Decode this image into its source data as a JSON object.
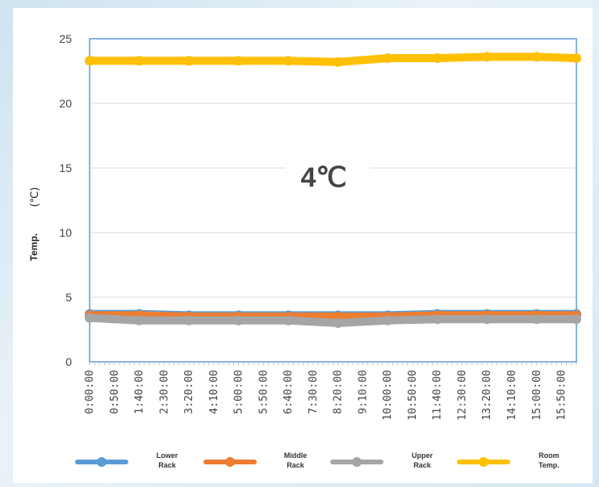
{
  "chart_data": {
    "type": "line",
    "title": "",
    "annotation": "4℃",
    "ylabel": "Temp.",
    "ylabel_unit": "(℃)",
    "xlabel": "",
    "ylim": [
      0,
      25
    ],
    "yticks": [
      0,
      5,
      10,
      15,
      20,
      25
    ],
    "grid": true,
    "legend_position": "bottom",
    "x_tick_labels": [
      "0:00:00",
      "0:50:00",
      "1:40:00",
      "2:30:00",
      "3:20:00",
      "4:10:00",
      "5:00:00",
      "5:50:00",
      "6:40:00",
      "7:30:00",
      "8:20:00",
      "9:10:00",
      "10:00:00",
      "10:50:00",
      "11:40:00",
      "12:30:00",
      "13:20:00",
      "14:10:00",
      "15:00:00",
      "15:50:00"
    ],
    "x_minutes_per_tick": 50,
    "x_end_minutes": 980,
    "series": [
      {
        "name": "Lower Rack",
        "color": "#5b9bd5",
        "x": [
          "0:00:00",
          "1:40:00",
          "3:20:00",
          "5:00:00",
          "6:40:00",
          "8:20:00",
          "10:00:00",
          "11:40:00",
          "13:20:00",
          "15:00:00",
          "16:20:00"
        ],
        "values": [
          3.7,
          3.7,
          3.6,
          3.6,
          3.6,
          3.6,
          3.6,
          3.7,
          3.7,
          3.7,
          3.7
        ]
      },
      {
        "name": "Middle Rack",
        "color": "#ed7d31",
        "x": [
          "0:00:00",
          "1:40:00",
          "3:20:00",
          "5:00:00",
          "6:40:00",
          "8:20:00",
          "10:00:00",
          "11:40:00",
          "13:20:00",
          "15:00:00",
          "16:20:00"
        ],
        "values": [
          3.6,
          3.6,
          3.5,
          3.5,
          3.5,
          3.5,
          3.5,
          3.6,
          3.6,
          3.6,
          3.6
        ]
      },
      {
        "name": "Upper Rack",
        "color": "#a5a5a5",
        "x": [
          "0:00:00",
          "1:40:00",
          "3:20:00",
          "5:00:00",
          "6:40:00",
          "8:20:00",
          "10:00:00",
          "11:40:00",
          "13:20:00",
          "15:00:00",
          "16:20:00"
        ],
        "values": [
          3.4,
          3.2,
          3.2,
          3.2,
          3.2,
          3.0,
          3.2,
          3.3,
          3.3,
          3.3,
          3.3
        ]
      },
      {
        "name": "Room Temp.",
        "color": "#ffc000",
        "x": [
          "0:00:00",
          "1:40:00",
          "3:20:00",
          "5:00:00",
          "6:40:00",
          "8:20:00",
          "10:00:00",
          "11:40:00",
          "13:20:00",
          "15:00:00",
          "16:20:00"
        ],
        "values": [
          23.3,
          23.3,
          23.3,
          23.3,
          23.3,
          23.2,
          23.5,
          23.5,
          23.6,
          23.6,
          23.5
        ]
      }
    ],
    "legend": [
      {
        "line1": "Lower",
        "line2": "Rack",
        "color": "#5b9bd5"
      },
      {
        "line1": "Middle",
        "line2": "Rack",
        "color": "#ed7d31"
      },
      {
        "line1": "Upper",
        "line2": "Rack",
        "color": "#a5a5a5"
      },
      {
        "line1": "Room",
        "line2": "Temp.",
        "color": "#ffc000"
      }
    ]
  }
}
